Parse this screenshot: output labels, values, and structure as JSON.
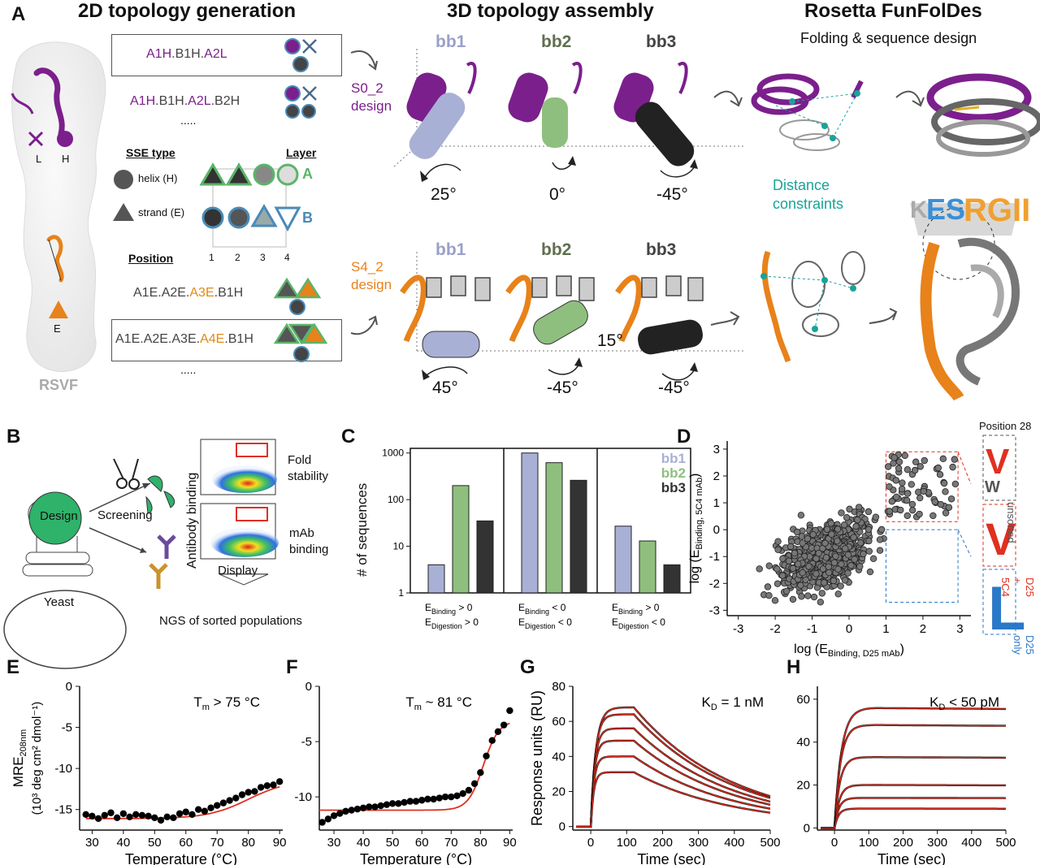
{
  "colors": {
    "purple": "#7b1f8c",
    "orange": "#e8821a",
    "teal": "#18a39a",
    "bb1": "#a9b0d6",
    "bb2": "#8fbf7f",
    "bb3": "#333333",
    "red": "#e03020",
    "blue": "#2a78c8"
  },
  "panelA": {
    "label": "A",
    "col1_title": "2D topology generation",
    "col2_title": "3D topology assembly",
    "col3_title": "Rosetta FunFolDes",
    "col3_sub": "Folding & sequence design",
    "rsvf": "RSVF",
    "L": "L",
    "H": "H",
    "E": "E",
    "topo1": [
      "A1H",
      ".B1H.",
      "A2L"
    ],
    "topo2": [
      "A1H",
      ".B1H.",
      "A2L",
      ".B2H"
    ],
    "dots": ".....",
    "sse_type": "SSE type",
    "layer": "Layer",
    "helix": "helix (H)",
    "strand": "strand (E)",
    "layerA": "A",
    "layerB": "B",
    "position": "Position",
    "positions": [
      "1",
      "2",
      "3",
      "4"
    ],
    "topo3": [
      "A1E.A2E.",
      "A3E",
      ".B1H"
    ],
    "topo4": [
      "A1E.A2E.A3E.",
      "A4E",
      ".B1H"
    ],
    "s0": "S0_2\ndesign",
    "s4": "S4_2\ndesign",
    "bb1": "bb1",
    "bb2": "bb2",
    "bb3": "bb3",
    "ang_top": [
      "25°",
      "0°",
      "-45°"
    ],
    "ang_bot": [
      "45°",
      "-45°",
      "-45°"
    ],
    "ang_15": "15°",
    "dist": "Distance\nconstraints"
  },
  "panelB": {
    "label": "B",
    "design": "Design",
    "screening": "Screening",
    "yeast": "Yeast",
    "fold": "Fold\nstability",
    "mab": "mAb\nbinding",
    "ylabel": "Antibody binding",
    "xlabel": "Display",
    "ngs": "NGS of sorted populations"
  },
  "panelC": {
    "label": "C",
    "chart_data": {
      "type": "bar",
      "yscale": "log",
      "ylabel": "# of sequences",
      "yticks": [
        "1",
        "10",
        "100",
        "1000"
      ],
      "series": [
        {
          "name": "bb1",
          "values": [
            4,
            1000,
            27
          ]
        },
        {
          "name": "bb2",
          "values": [
            200,
            620,
            13
          ]
        },
        {
          "name": "bb3",
          "values": [
            35,
            260,
            4
          ]
        }
      ],
      "groups": [
        {
          "l1": "E",
          "s1": "Binding",
          "o1": "> 0",
          "l2": "E",
          "s2": "Digestion",
          "o2": "> 0"
        },
        {
          "l1": "E",
          "s1": "Binding",
          "o1": "< 0",
          "l2": "E",
          "s2": "Digestion",
          "o2": "< 0"
        },
        {
          "l1": "E",
          "s1": "Binding",
          "o1": "> 0",
          "l2": "E",
          "s2": "Digestion",
          "o2": "< 0"
        }
      ]
    }
  },
  "panelD": {
    "label": "D",
    "pos": "Position 28",
    "unsorted": "unsorted",
    "d25_5c4": "D25 + 5C4",
    "d25only": "D25 only",
    "logo_letters": [
      "V",
      "W",
      "V",
      "L"
    ],
    "chart_data": {
      "type": "scatter",
      "xlabel": "log (E",
      "xsub": "Binding, D25 mAb",
      "ylabel": "log (E",
      "ysub": "Binding, 5C4 mAb",
      "xlim": [
        -3.3,
        3.3
      ],
      "ylim": [
        -3.2,
        3.3
      ],
      "xticks": [
        "-3",
        "-2",
        "-1",
        "0",
        "1",
        "2",
        "3"
      ],
      "yticks": [
        "3",
        "2",
        "1",
        "0",
        "-1",
        "-2",
        "-3"
      ]
    }
  },
  "panelE": {
    "label": "E",
    "annot": "T",
    "annot_sub": "m",
    "annot_rest": " > 75 °C",
    "chart_data": {
      "type": "scatter",
      "xlabel": "Temperature (°C)",
      "ylabel_1": "MRE",
      "ylabel_sub": "208nm",
      "ylabel_2": "(10³ deg cm² dmol⁻¹)",
      "xlim": [
        26,
        91
      ],
      "ylim": [
        -17.5,
        0
      ],
      "xticks": [
        "30",
        "40",
        "50",
        "60",
        "70",
        "80",
        "90"
      ],
      "yticks": [
        "0",
        "-5",
        "-10",
        "-15"
      ],
      "x": [
        28,
        30,
        32,
        34,
        36,
        38,
        40,
        42,
        44,
        46,
        48,
        50,
        52,
        54,
        56,
        58,
        60,
        62,
        64,
        66,
        68,
        70,
        72,
        74,
        76,
        78,
        80,
        82,
        84,
        86,
        88,
        90
      ],
      "y": [
        -15.6,
        -15.8,
        -16.1,
        -15.7,
        -15.4,
        -16.0,
        -15.5,
        -15.9,
        -15.6,
        -15.7,
        -15.8,
        -16.0,
        -16.3,
        -15.9,
        -16.0,
        -15.5,
        -15.3,
        -15.6,
        -15.0,
        -15.2,
        -14.8,
        -14.5,
        -14.2,
        -13.9,
        -13.6,
        -13.2,
        -12.9,
        -12.8,
        -12.3,
        -12.1,
        -12.0,
        -11.6
      ]
    }
  },
  "panelF": {
    "label": "F",
    "annot": "T",
    "annot_sub": "m",
    "annot_rest": " ~ 81 °C",
    "chart_data": {
      "type": "scatter",
      "xlabel": "Temperature (°C)",
      "xlim": [
        25,
        91
      ],
      "ylim": [
        -13,
        0
      ],
      "xticks": [
        "30",
        "40",
        "50",
        "60",
        "70",
        "80",
        "90"
      ],
      "yticks": [
        "0",
        "-5",
        "-10"
      ],
      "x": [
        26,
        28,
        30,
        32,
        34,
        36,
        38,
        40,
        42,
        44,
        46,
        48,
        50,
        52,
        54,
        56,
        58,
        60,
        62,
        64,
        66,
        68,
        70,
        72,
        74,
        76,
        78,
        80,
        82,
        84,
        86,
        88,
        90
      ],
      "y": [
        -12.3,
        -12.0,
        -11.7,
        -11.5,
        -11.3,
        -11.2,
        -11.1,
        -11.0,
        -10.9,
        -10.9,
        -10.8,
        -10.7,
        -10.6,
        -10.6,
        -10.5,
        -10.4,
        -10.4,
        -10.3,
        -10.2,
        -10.2,
        -10.1,
        -10.0,
        -10.0,
        -9.9,
        -9.7,
        -9.4,
        -8.8,
        -7.8,
        -6.3,
        -4.9,
        -4.1,
        -3.5,
        -2.2
      ]
    }
  },
  "panelG": {
    "label": "G",
    "annot": "K",
    "annot_sub": "D",
    "annot_rest": " = 1 nM",
    "chart_data": {
      "type": "line",
      "xlabel": "Time (sec)",
      "ylabel": "Response units (RU)",
      "xlim": [
        -50,
        500
      ],
      "ylim": [
        -2,
        80
      ],
      "xticks": [
        "0",
        "100",
        "200",
        "300",
        "400",
        "500"
      ],
      "yticks": [
        "0",
        "20",
        "40",
        "60",
        "80"
      ],
      "plateaus": [
        68,
        64,
        56,
        49,
        40,
        31
      ]
    }
  },
  "panelH": {
    "label": "H",
    "annot": "K",
    "annot_sub": "D",
    "annot_rest": " < 50 pM",
    "chart_data": {
      "type": "line",
      "xlabel": "Time (sec)",
      "xlim": [
        -50,
        500
      ],
      "ylim": [
        -1,
        66
      ],
      "xticks": [
        "0",
        "100",
        "200",
        "300",
        "400",
        "500"
      ],
      "yticks": [
        "0",
        "20",
        "40",
        "60"
      ],
      "plateaus": [
        56,
        48,
        33,
        20,
        14,
        9
      ]
    }
  }
}
